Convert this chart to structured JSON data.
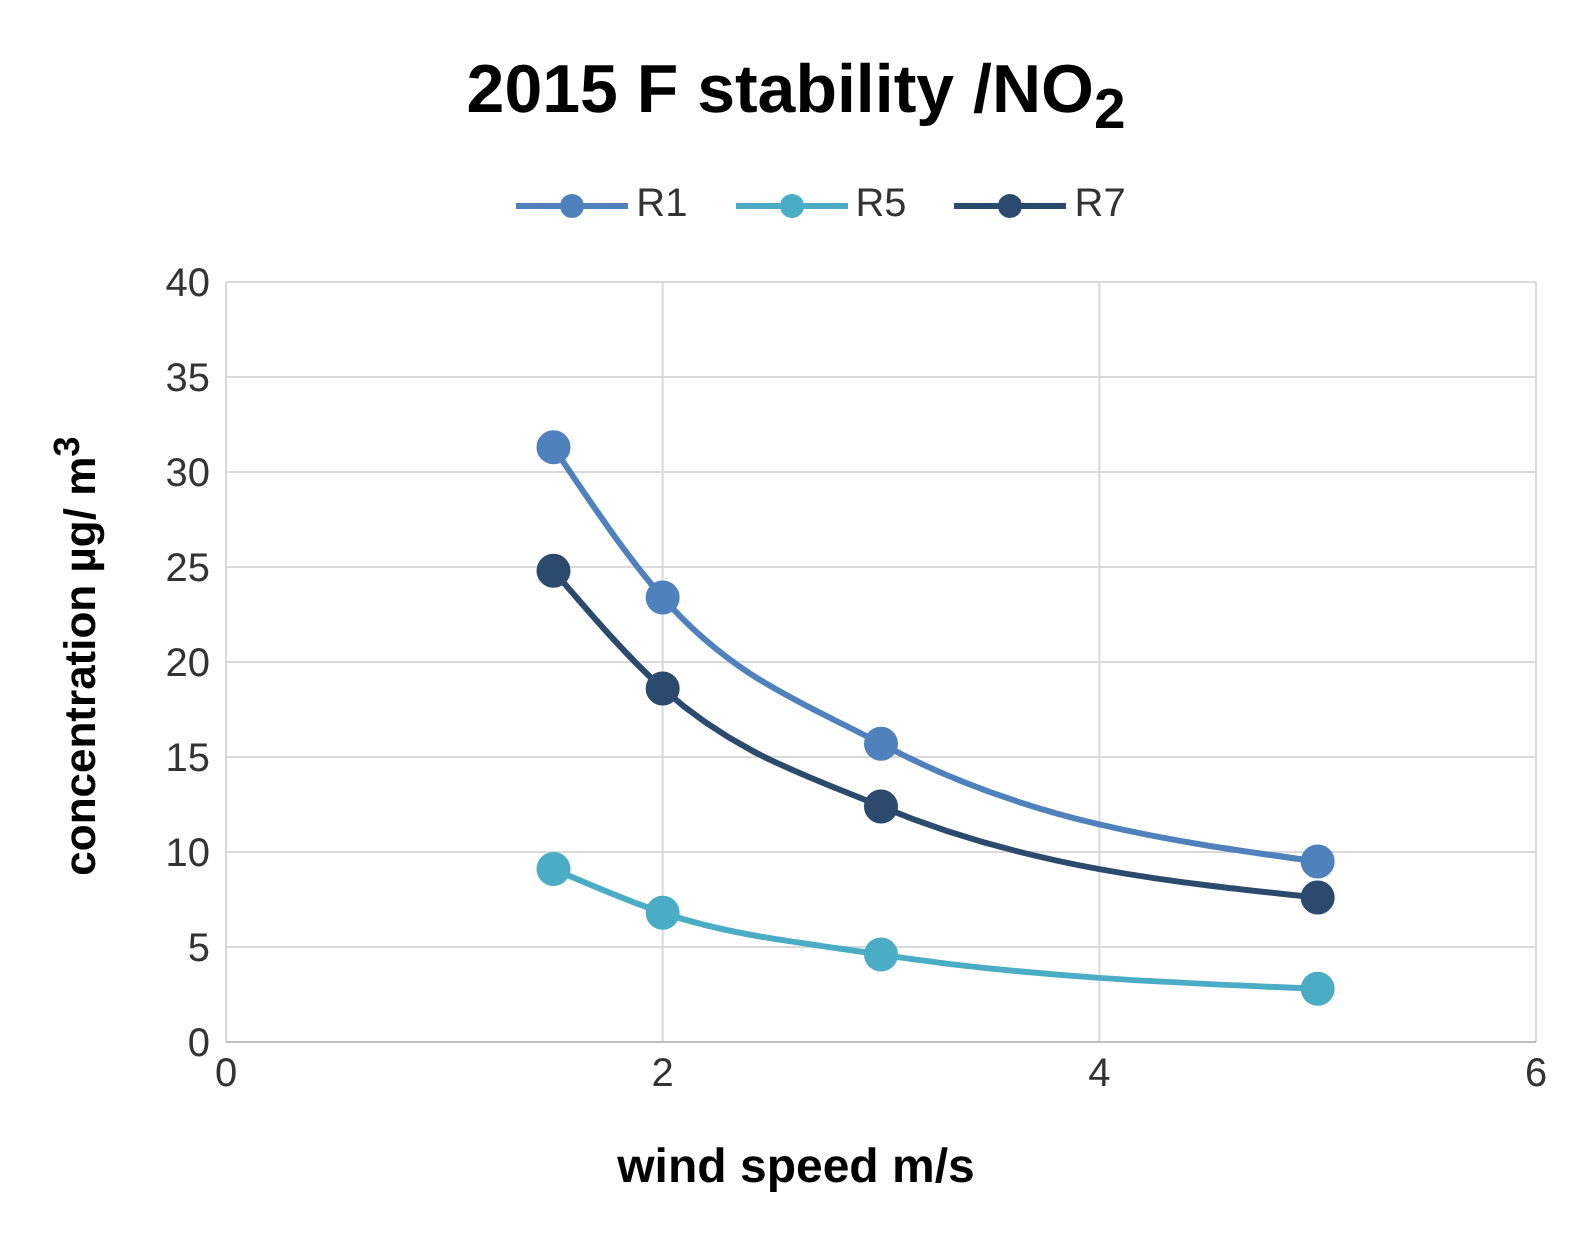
{
  "chart_data": {
    "type": "line",
    "title": "2015 F stability /NO$_{2}$",
    "xlabel": "wind speed m/s",
    "ylabel": "concentration µg/ m$^{3}$",
    "x": [
      1.5,
      2,
      3,
      5
    ],
    "series": [
      {
        "name": "R1",
        "color": "#4f81bd",
        "values": [
          31.3,
          23.4,
          15.7,
          9.5
        ]
      },
      {
        "name": "R5",
        "color": "#4bacc6",
        "values": [
          9.1,
          6.8,
          4.6,
          2.8
        ]
      },
      {
        "name": "R7",
        "color": "#2c4a6e",
        "values": [
          24.8,
          18.6,
          12.4,
          7.6
        ]
      }
    ],
    "xlim": [
      0,
      6
    ],
    "xticks": [
      0,
      2,
      4,
      6
    ],
    "ylim": [
      0,
      40
    ],
    "yticks": [
      0,
      5,
      10,
      15,
      20,
      25,
      30,
      35,
      40
    ],
    "grid": true,
    "legend": "top",
    "marker": "circle",
    "line_style": "solid"
  }
}
